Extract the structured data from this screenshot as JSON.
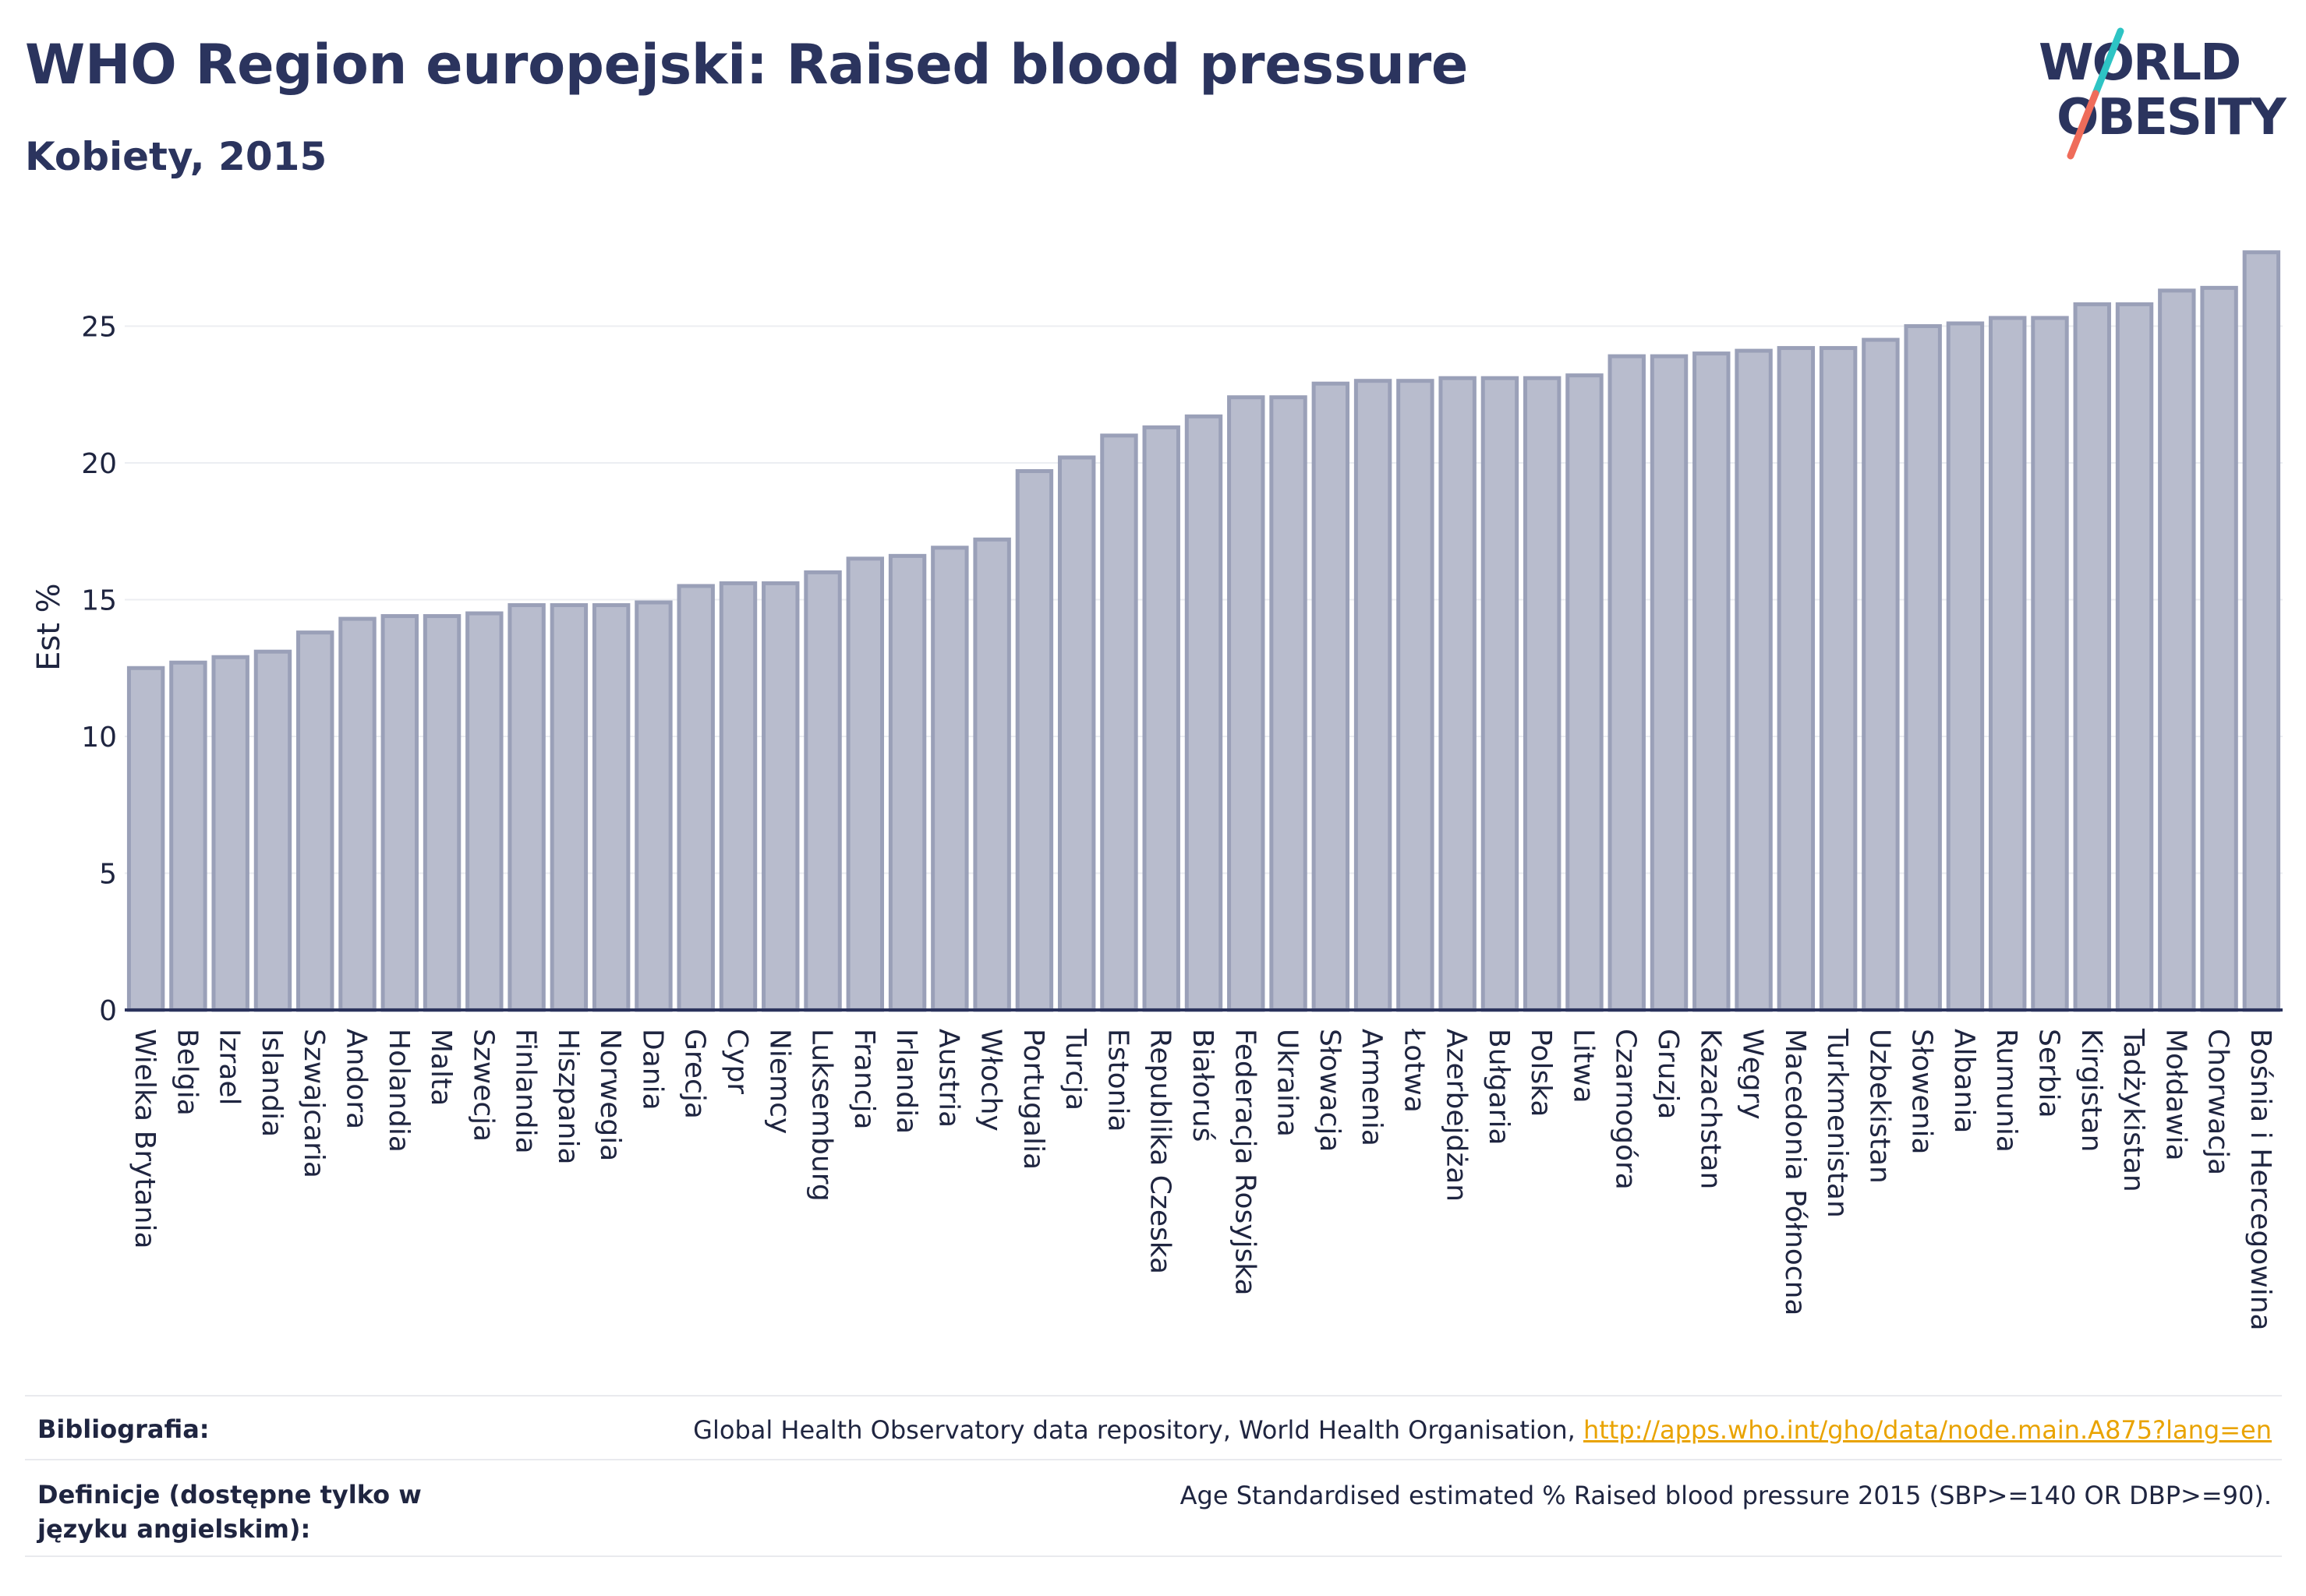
{
  "header": {
    "title": "WHO Region europejski: Raised blood pressure",
    "subtitle": "Kobiety, 2015",
    "logo_line1": "WORLD",
    "logo_line2": "OBESITY"
  },
  "chart_data": {
    "type": "bar",
    "ylabel": "Est %",
    "xlabel": "",
    "ylim": [
      0,
      28
    ],
    "yticks": [
      0,
      5,
      10,
      15,
      20,
      25
    ],
    "grid": true,
    "bar_color": "#b8bccd",
    "bar_edge_color": "#9aa0b8",
    "categories": [
      "Wielka Brytania",
      "Belgia",
      "Izrael",
      "Islandia",
      "Szwajcaria",
      "Andora",
      "Holandia",
      "Malta",
      "Szwecja",
      "Finlandia",
      "Hiszpania",
      "Norwegia",
      "Dania",
      "Grecja",
      "Cypr",
      "Niemcy",
      "Luksemburg",
      "Francja",
      "Irlandia",
      "Austria",
      "Włochy",
      "Portugalia",
      "Turcja",
      "Estonia",
      "Republika Czeska",
      "Białoruś",
      "Federacja Rosyjska",
      "Ukraina",
      "Słowacja",
      "Armenia",
      "Łotwa",
      "Azerbejdżan",
      "Bułgaria",
      "Polska",
      "Litwa",
      "Czarnogóra",
      "Gruzja",
      "Kazachstan",
      "Węgry",
      "Macedonia Północna",
      "Turkmenistan",
      "Uzbekistan",
      "Słowenia",
      "Albania",
      "Rumunia",
      "Serbia",
      "Kirgistan",
      "Tadżykistan",
      "Mołdawia",
      "Chorwacja",
      "Bośnia i Hercegowina"
    ],
    "values": [
      12.5,
      12.7,
      12.9,
      13.1,
      13.8,
      14.3,
      14.4,
      14.4,
      14.5,
      14.8,
      14.8,
      14.8,
      14.9,
      15.5,
      15.6,
      15.6,
      16.0,
      16.5,
      16.6,
      16.9,
      17.2,
      19.7,
      20.2,
      21.0,
      21.3,
      21.7,
      22.4,
      22.4,
      22.9,
      23.0,
      23.0,
      23.1,
      23.1,
      23.1,
      23.2,
      23.9,
      23.9,
      24.0,
      24.1,
      24.2,
      24.2,
      24.5,
      25.0,
      25.1,
      25.3,
      25.3,
      25.8,
      25.8,
      26.3,
      26.4,
      27.7
    ]
  },
  "footer": {
    "bibliography_label": "Bibliografia:",
    "bibliography_text": "Global Health Observatory data repository, World Health Organisation, ",
    "bibliography_link": "http://apps.who.int/gho/data/node.main.A875?lang=en",
    "definitions_label": "Definicje (dostępne tylko w języku angielskim):",
    "definitions_text": "Age Standardised estimated % Raised blood pressure 2015 (SBP>=140 OR DBP>=90)."
  }
}
